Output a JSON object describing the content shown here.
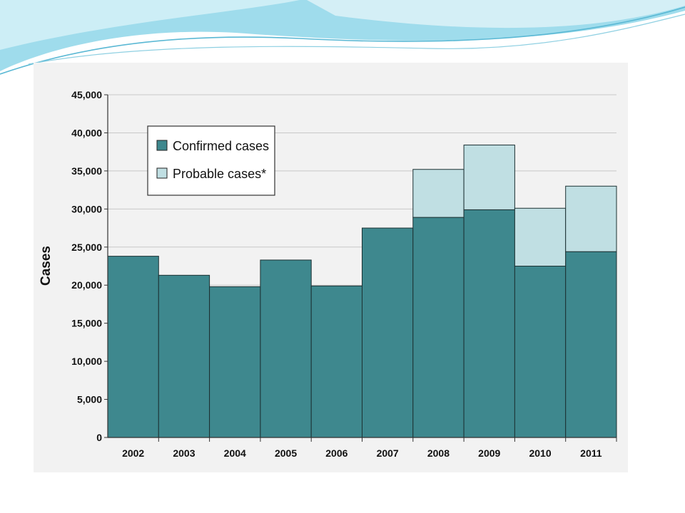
{
  "colors": {
    "confirmed": "#3e888e",
    "probable": "#c0dfe3",
    "gridline": "#c8c8c8",
    "panel": "#f2f2f2",
    "wave_dark": "#52b8d6",
    "wave_light": "#bde4ef"
  },
  "chart_data": {
    "type": "bar",
    "stacked": true,
    "categories": [
      "2002",
      "2003",
      "2004",
      "2005",
      "2006",
      "2007",
      "2008",
      "2009",
      "2010",
      "2011"
    ],
    "series": [
      {
        "name": "Confirmed cases",
        "values": [
          23800,
          21300,
          19800,
          23300,
          19900,
          27500,
          28900,
          29900,
          22500,
          24400
        ]
      },
      {
        "name": "Probable cases*",
        "values": [
          0,
          0,
          0,
          0,
          0,
          0,
          6300,
          8500,
          7600,
          8600
        ]
      }
    ],
    "xlabel": "",
    "ylabel": "Cases",
    "ylim": [
      0,
      45000
    ],
    "yticks": [
      0,
      5000,
      10000,
      15000,
      20000,
      25000,
      30000,
      35000,
      40000,
      45000
    ],
    "ytick_labels": [
      "0",
      "5,000",
      "10,000",
      "15,000",
      "20,000",
      "25,000",
      "30,000",
      "35,000",
      "40,000",
      "45,000"
    ],
    "grid": true,
    "legend_position": "top-left"
  }
}
